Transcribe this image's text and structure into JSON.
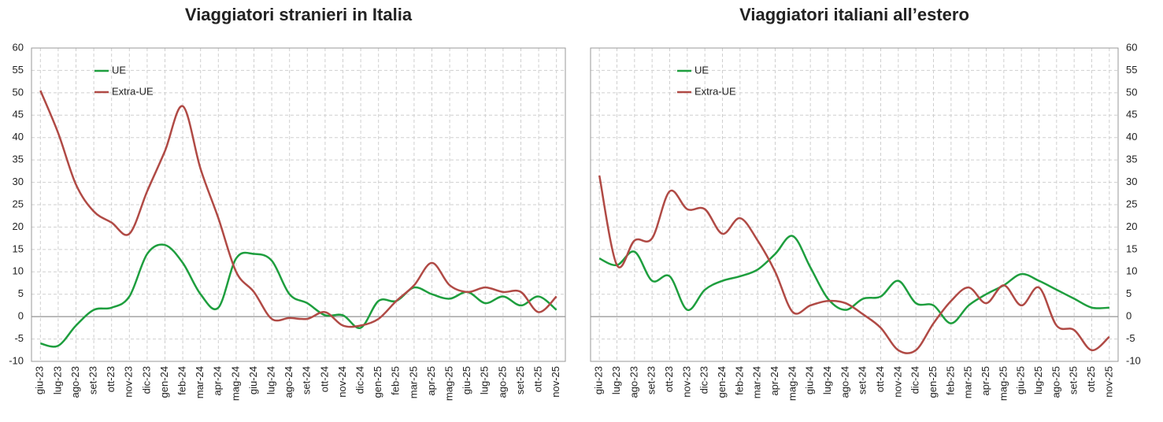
{
  "chart_data": [
    {
      "type": "line",
      "title": "Viaggiatori stranieri in Italia",
      "y_axis_side": "left",
      "legend": "upper left",
      "grid": true,
      "categories": [
        "giu-23",
        "lug-23",
        "ago-23",
        "set-23",
        "ott-23",
        "nov-23",
        "dic-23",
        "gen-24",
        "feb-24",
        "mar-24",
        "apr-24",
        "mag-24",
        "giu-24",
        "lug-24",
        "ago-24",
        "set-24",
        "ott-24",
        "nov-24",
        "dic-24",
        "gen-25",
        "feb-25",
        "mar-25",
        "apr-25",
        "mag-25",
        "giu-25",
        "lug-25",
        "ago-25",
        "set-25",
        "ott-25",
        "nov-25"
      ],
      "ylim": [
        -10,
        60
      ],
      "yticks": [
        -10,
        -5,
        0,
        5,
        10,
        15,
        20,
        25,
        30,
        35,
        40,
        45,
        50,
        55,
        60
      ],
      "series": [
        {
          "name": "UE",
          "color": "#1e9e3e",
          "values": [
            -6,
            -6.5,
            -2,
            1.5,
            2,
            4.5,
            14,
            16,
            12,
            5,
            2,
            13,
            14,
            12.5,
            5,
            3,
            0.3,
            0.3,
            -2.5,
            3.5,
            3.5,
            6.5,
            5,
            4,
            5.5,
            3,
            4.5,
            2.5,
            4.5,
            1.5
          ]
        },
        {
          "name": "Extra-UE",
          "color": "#b04a45",
          "values": [
            50.5,
            41,
            29.5,
            23.5,
            21,
            18.5,
            28,
            37,
            47,
            33,
            22,
            10,
            5.5,
            -0.5,
            -0.3,
            -0.5,
            1,
            -2,
            -2,
            -0.5,
            3.5,
            7,
            12,
            7,
            5.5,
            6.5,
            5.5,
            5.5,
            1,
            4.5
          ]
        }
      ]
    },
    {
      "type": "line",
      "title": "Viaggiatori italiani all’estero",
      "y_axis_side": "right",
      "legend": "upper left",
      "grid": true,
      "categories": [
        "giu-23",
        "lug-23",
        "ago-23",
        "set-23",
        "ott-23",
        "nov-23",
        "dic-23",
        "gen-24",
        "feb-24",
        "mar-24",
        "apr-24",
        "mag-24",
        "giu-24",
        "lug-24",
        "ago-24",
        "set-24",
        "ott-24",
        "nov-24",
        "dic-24",
        "gen-25",
        "feb-25",
        "mar-25",
        "apr-25",
        "mag-25",
        "giu-25",
        "lug-25",
        "ago-25",
        "set-25",
        "ott-25",
        "nov-25"
      ],
      "ylim": [
        -10,
        60
      ],
      "yticks": [
        -10,
        -5,
        0,
        5,
        10,
        15,
        20,
        25,
        30,
        35,
        40,
        45,
        50,
        55,
        60
      ],
      "series": [
        {
          "name": "UE",
          "color": "#1e9e3e",
          "values": [
            13,
            11.5,
            14.5,
            8,
            9,
            1.5,
            6,
            8,
            9,
            10.5,
            14,
            18,
            11,
            4,
            1.5,
            4,
            4.5,
            8,
            3,
            2.5,
            -1.5,
            2.5,
            5,
            7,
            9.5,
            8,
            6,
            4,
            2,
            2
          ]
        },
        {
          "name": "Extra-UE",
          "color": "#b04a45",
          "values": [
            31.5,
            11.5,
            17,
            17.5,
            28,
            24,
            24,
            18.5,
            22,
            17,
            10,
            1,
            2.5,
            3.5,
            3,
            0.5,
            -2.5,
            -7.5,
            -7.5,
            -1.5,
            3.5,
            6.5,
            3,
            7,
            2.5,
            6.5,
            -2,
            -3,
            -7.5,
            -4.5
          ]
        }
      ]
    }
  ]
}
